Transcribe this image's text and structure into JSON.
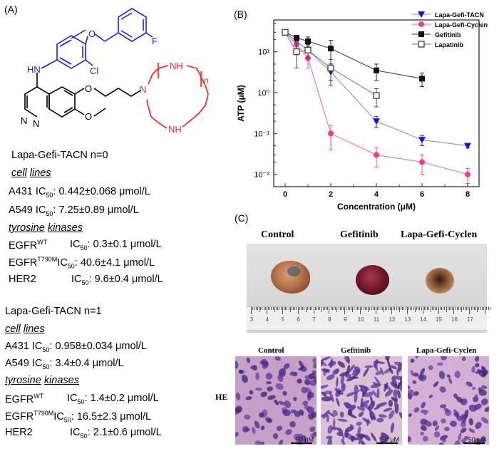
{
  "panels": {
    "a": "(A)",
    "b": "(B)",
    "c": "(C)"
  },
  "molecule": {
    "atoms": {
      "f": "F",
      "o_top": "O",
      "nh_aniline": "HN",
      "cl": "Cl",
      "n_quin1": "N",
      "n_quin2": "N",
      "o_mid": "O",
      "o_methoxy": "O",
      "n_macro": "N",
      "nh_macro1": "NH",
      "nh_macro2": "NH",
      "n_subscript": "n"
    },
    "colors": {
      "aniline": "#1a1aff",
      "macrocycle": "#ff1a1a",
      "core": "#000000"
    }
  },
  "compound1": {
    "title": "Lapa-Gefi-TACN n=0",
    "cell_lines_head_1": "cell",
    "cell_lines_head_2": "lines",
    "a431": {
      "pre": "A431 IC",
      "sub": "50",
      "val": ": 0.442±0.068 μmol/L"
    },
    "a549": {
      "pre": "A549 IC",
      "sub": "50",
      "val": ": 7.25±0.89 μmol/L"
    },
    "kin_head_1": "tyrosine",
    "kin_head_2": "kinases",
    "egfr_wt": {
      "pre": "EGFR",
      "sup": "WT",
      "ic": "IC",
      "sub": "50",
      "val": ": 0.3±0.1 μmol/L"
    },
    "egfr_mut": {
      "pre": "EGFR",
      "sup": "T790M",
      "ic": "IC",
      "sub": "50",
      "val": ": 40.6±4.1 μmol/L"
    },
    "her2": {
      "pre": "HER2",
      "ic": "IC",
      "sub": "50",
      "val": ": 9.6±0.4 μmol/L"
    }
  },
  "compound2": {
    "title": "Lapa-Gefi-TACN n=1",
    "cell_lines_head_1": "cell",
    "cell_lines_head_2": "lines",
    "a431": {
      "pre": "A431 IC",
      "sub": "50",
      "val": ": 0.958±0.034 μmol/L"
    },
    "a549": {
      "pre": "A549 IC",
      "sub": "50",
      "val": ": 3.4±0.4 μmol/L"
    },
    "kin_head_1": "tyrosine",
    "kin_head_2": "kinases",
    "egfr_wt": {
      "pre": "EGFR",
      "sup": "WT",
      "ic": "IC",
      "sub": "50",
      "val": ": 1.4±0.2 μmol/L"
    },
    "egfr_mut": {
      "pre": "EGFR",
      "sup": "T790M",
      "ic": "IC",
      "sub": "50",
      "val": ": 16.5±2.3 μmol/L"
    },
    "her2": {
      "pre": "HER2",
      "ic": "IC",
      "sub": "50",
      "val": ": 2.1±0.6 μmol/L"
    }
  },
  "chart_data": {
    "type": "line",
    "yscale": "log",
    "xlabel": "Concentration (μM)",
    "ylabel": "ATP (μM)",
    "xlim": [
      -0.5,
      8.5
    ],
    "ylim": [
      0.005,
      60
    ],
    "xticks": [
      0,
      2,
      4,
      6,
      8
    ],
    "xtick_labels": [
      "0",
      "2",
      "4",
      "6",
      "8"
    ],
    "yticks": [
      0.01,
      0.1,
      1,
      10
    ],
    "ytick_labels": [
      "10⁻²",
      "10⁻¹",
      "10⁰",
      "10¹"
    ],
    "legend_position": "top-right",
    "series": [
      {
        "name": "Lapa-Gefi-TACN",
        "color": "#1515c8",
        "marker": "triangle-down",
        "line": "#9a9ac0",
        "x": [
          0,
          0.5,
          1,
          2,
          4,
          6,
          8
        ],
        "y": [
          30,
          18,
          11,
          3.2,
          0.2,
          0.07,
          0.05
        ],
        "err": [
          4,
          3,
          3,
          1.2,
          0.06,
          0.02,
          0.006
        ]
      },
      {
        "name": "Lapa-Gefi-Cyclen",
        "color": "#ee3a8c",
        "marker": "circle",
        "line": "#f07ab4",
        "x": [
          0,
          0.5,
          1,
          2,
          4,
          6,
          8
        ],
        "y": [
          30,
          15,
          7,
          0.1,
          0.03,
          0.02,
          0.01
        ],
        "err": [
          5,
          5,
          3,
          0.06,
          0.015,
          0.01,
          0.004
        ]
      },
      {
        "name": "Gefitinib",
        "color": "#111111",
        "marker": "square",
        "line": "#555555",
        "x": [
          0,
          0.5,
          1,
          2,
          4,
          6
        ],
        "y": [
          30,
          22,
          18,
          12,
          3.5,
          2.2
        ],
        "err": [
          4,
          3,
          5,
          7,
          1.5,
          0.8
        ]
      },
      {
        "name": "Lapatinib",
        "color": "#333333",
        "marker": "open-square",
        "line": "#8a8a8a",
        "x": [
          0,
          0.5,
          1,
          2,
          4
        ],
        "y": [
          30,
          10,
          11,
          4,
          0.85
        ],
        "err": [
          4,
          6,
          4,
          2.5,
          0.4
        ]
      }
    ]
  },
  "photo": {
    "labels": [
      "Control",
      "Gefitinib",
      "Lapa-Gefi-Cyclen"
    ],
    "ruler_numbers": [
      "3",
      "4",
      "5",
      "6",
      "7",
      "8",
      "9",
      "10",
      "11",
      "12",
      "13",
      "14",
      "15",
      "16",
      "17"
    ]
  },
  "histology": {
    "row_label": "HE",
    "labels": [
      "Control",
      "Gefitinib",
      "Lapa-Gefi-Cyclen"
    ],
    "scale_text": "50 μM"
  }
}
